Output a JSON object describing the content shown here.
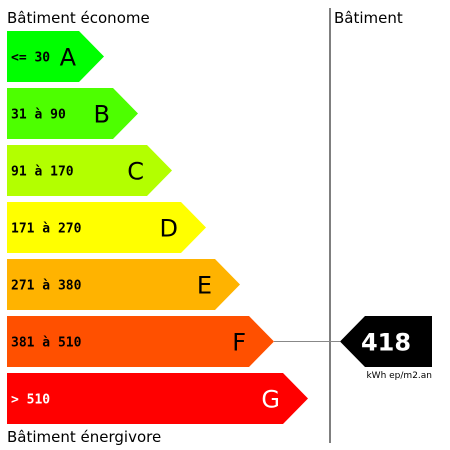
{
  "headers": {
    "top_left": "Bâtiment économe",
    "top_right": "Bâtiment",
    "bottom_left": "Bâtiment énergivore"
  },
  "chart_data": {
    "type": "bar",
    "categories": [
      "A",
      "B",
      "C",
      "D",
      "E",
      "F",
      "G"
    ],
    "ranges": [
      "<= 30",
      "31 à 90",
      "91 à 170",
      "171 à 270",
      "271 à 380",
      "381 à 510",
      "> 510"
    ],
    "colors": [
      "#00ff00",
      "#4dff00",
      "#b3ff00",
      "#ffff00",
      "#ffb300",
      "#ff5000",
      "#ff0000"
    ],
    "range_colors": [
      "#000000",
      "#000000",
      "#000000",
      "#000000",
      "#000000",
      "#000000",
      "#ffffff"
    ],
    "letter_colors": [
      "#000000",
      "#000000",
      "#000000",
      "#000000",
      "#000000",
      "#000000",
      "#ffffff"
    ],
    "value": 418,
    "value_class": "F",
    "value_label": "418",
    "unit": "kWh ep/m2.an",
    "indicator_color": "#000000"
  }
}
